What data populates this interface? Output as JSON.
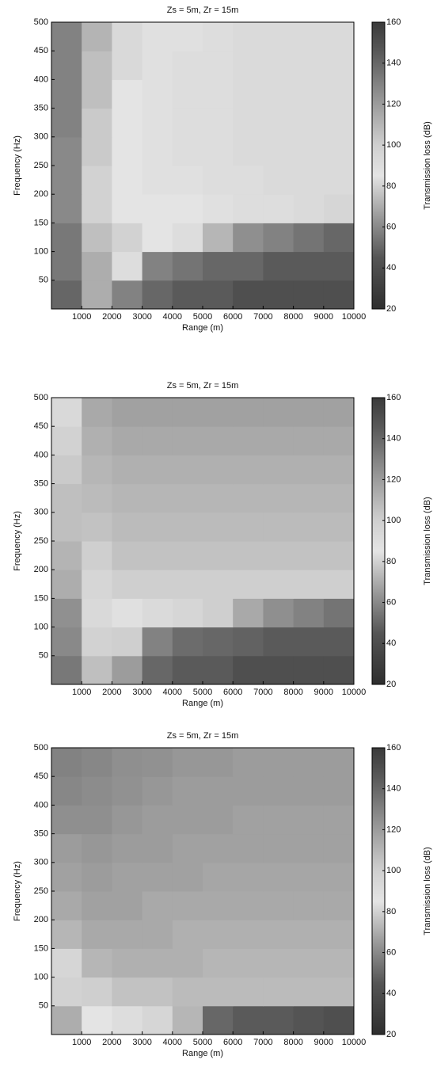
{
  "chart_data": [
    {
      "type": "heatmap",
      "title": "Zs = 5m, Zr = 15m",
      "xlabel": "Range (m)",
      "ylabel": "Frequency (Hz)",
      "colorbar_label": "Transmission loss (dB)",
      "xlim": [
        0,
        10000
      ],
      "ylim": [
        0,
        500
      ],
      "clim": [
        20,
        160
      ],
      "xticks": [
        1000,
        2000,
        3000,
        4000,
        5000,
        6000,
        7000,
        8000,
        9000,
        10000
      ],
      "yticks": [
        50,
        100,
        150,
        200,
        250,
        300,
        350,
        400,
        450,
        500
      ],
      "cticks": [
        20,
        40,
        60,
        80,
        100,
        120,
        140,
        160
      ],
      "x": [
        500,
        1500,
        2500,
        3500,
        4500,
        5500,
        6500,
        7500,
        8500,
        9500
      ],
      "y": [
        25,
        75,
        125,
        175,
        225,
        275,
        325,
        375,
        425,
        475
      ],
      "z": [
        [
          50,
          70,
          130,
          140,
          145,
          145,
          150,
          150,
          150,
          150
        ],
        [
          55,
          70,
          90,
          130,
          135,
          140,
          140,
          145,
          145,
          145
        ],
        [
          55,
          75,
          80,
          85,
          90,
          110,
          125,
          130,
          135,
          140
        ],
        [
          60,
          80,
          85,
          85,
          85,
          88,
          90,
          90,
          92,
          95
        ],
        [
          60,
          80,
          85,
          88,
          88,
          90,
          90,
          92,
          92,
          92
        ],
        [
          60,
          78,
          85,
          88,
          90,
          90,
          92,
          92,
          92,
          92
        ],
        [
          58,
          78,
          85,
          88,
          90,
          90,
          92,
          92,
          92,
          92
        ],
        [
          58,
          75,
          85,
          88,
          90,
          90,
          92,
          92,
          92,
          92
        ],
        [
          58,
          75,
          82,
          88,
          90,
          90,
          92,
          92,
          92,
          92
        ],
        [
          58,
          72,
          82,
          88,
          88,
          90,
          92,
          92,
          92,
          92
        ]
      ]
    },
    {
      "type": "heatmap",
      "title": "Zs = 5m, Zr = 15m",
      "xlabel": "Range (m)",
      "ylabel": "Frequency (Hz)",
      "colorbar_label": "Transmission loss (dB)",
      "xlim": [
        0,
        10000
      ],
      "ylim": [
        0,
        500
      ],
      "clim": [
        20,
        160
      ],
      "xticks": [
        1000,
        2000,
        3000,
        4000,
        5000,
        6000,
        7000,
        8000,
        9000,
        10000
      ],
      "yticks": [
        50,
        100,
        150,
        200,
        250,
        300,
        350,
        400,
        450,
        500
      ],
      "cticks": [
        20,
        40,
        60,
        80,
        100,
        120,
        140,
        160
      ],
      "x": [
        500,
        1500,
        2500,
        3500,
        4500,
        5500,
        6500,
        7500,
        8500,
        9500
      ],
      "y": [
        25,
        75,
        125,
        175,
        225,
        275,
        325,
        375,
        425,
        475
      ],
      "z": [
        [
          55,
          75,
          120,
          140,
          145,
          145,
          150,
          150,
          150,
          150
        ],
        [
          60,
          80,
          100,
          130,
          138,
          140,
          142,
          145,
          145,
          145
        ],
        [
          62,
          82,
          88,
          92,
          95,
          100,
          115,
          125,
          130,
          135
        ],
        [
          70,
          95,
          100,
          100,
          100,
          100,
          100,
          100,
          100,
          100
        ],
        [
          72,
          100,
          105,
          105,
          105,
          105,
          105,
          105,
          105,
          105
        ],
        [
          75,
          105,
          108,
          108,
          108,
          108,
          108,
          108,
          108,
          108
        ],
        [
          75,
          108,
          110,
          110,
          110,
          110,
          110,
          110,
          110,
          110
        ],
        [
          78,
          110,
          112,
          112,
          112,
          112,
          112,
          112,
          112,
          112
        ],
        [
          80,
          112,
          115,
          115,
          115,
          115,
          115,
          115,
          115,
          115
        ],
        [
          82,
          115,
          118,
          118,
          118,
          118,
          118,
          118,
          118,
          118
        ]
      ]
    },
    {
      "type": "heatmap",
      "title": "Zs = 5m, Zr = 15m",
      "xlabel": "Range (m)",
      "ylabel": "Frequency (Hz)",
      "colorbar_label": "Transmission loss (dB)",
      "xlim": [
        0,
        10000
      ],
      "ylim": [
        0,
        500
      ],
      "clim": [
        20,
        160
      ],
      "xticks": [
        1000,
        2000,
        3000,
        4000,
        5000,
        6000,
        7000,
        8000,
        9000,
        10000
      ],
      "yticks": [
        50,
        100,
        150,
        200,
        250,
        300,
        350,
        400,
        450,
        500
      ],
      "cticks": [
        20,
        40,
        60,
        80,
        100,
        120,
        140,
        160
      ],
      "x": [
        500,
        1500,
        2500,
        3500,
        4500,
        5500,
        6500,
        7500,
        8500,
        9500
      ],
      "y": [
        25,
        75,
        125,
        175,
        225,
        275,
        325,
        375,
        425,
        475
      ],
      "z": [
        [
          70,
          85,
          90,
          95,
          110,
          140,
          145,
          145,
          148,
          150
        ],
        [
          80,
          100,
          105,
          105,
          108,
          108,
          108,
          108,
          108,
          108
        ],
        [
          95,
          110,
          112,
          112,
          112,
          110,
          110,
          110,
          110,
          110
        ],
        [
          110,
          115,
          115,
          115,
          112,
          112,
          112,
          112,
          112,
          112
        ],
        [
          115,
          118,
          118,
          115,
          115,
          115,
          115,
          115,
          115,
          115
        ],
        [
          118,
          120,
          118,
          118,
          118,
          116,
          116,
          116,
          116,
          116
        ],
        [
          120,
          122,
          120,
          120,
          118,
          118,
          118,
          118,
          118,
          118
        ],
        [
          125,
          125,
          122,
          120,
          120,
          120,
          118,
          118,
          118,
          118
        ],
        [
          128,
          126,
          124,
          122,
          120,
          120,
          120,
          120,
          120,
          120
        ],
        [
          130,
          128,
          125,
          124,
          122,
          122,
          120,
          120,
          120,
          120
        ]
      ]
    }
  ],
  "colormap": [
    {
      "value": 20,
      "color": "#2e2e2e"
    },
    {
      "value": 45,
      "color": "#555555"
    },
    {
      "value": 65,
      "color": "#9a9a9a"
    },
    {
      "value": 85,
      "color": "#e4e4e4"
    },
    {
      "value": 100,
      "color": "#cfcfcf"
    },
    {
      "value": 120,
      "color": "#9c9c9c"
    },
    {
      "value": 145,
      "color": "#5a5a5a"
    },
    {
      "value": 160,
      "color": "#3a3a3a"
    }
  ]
}
